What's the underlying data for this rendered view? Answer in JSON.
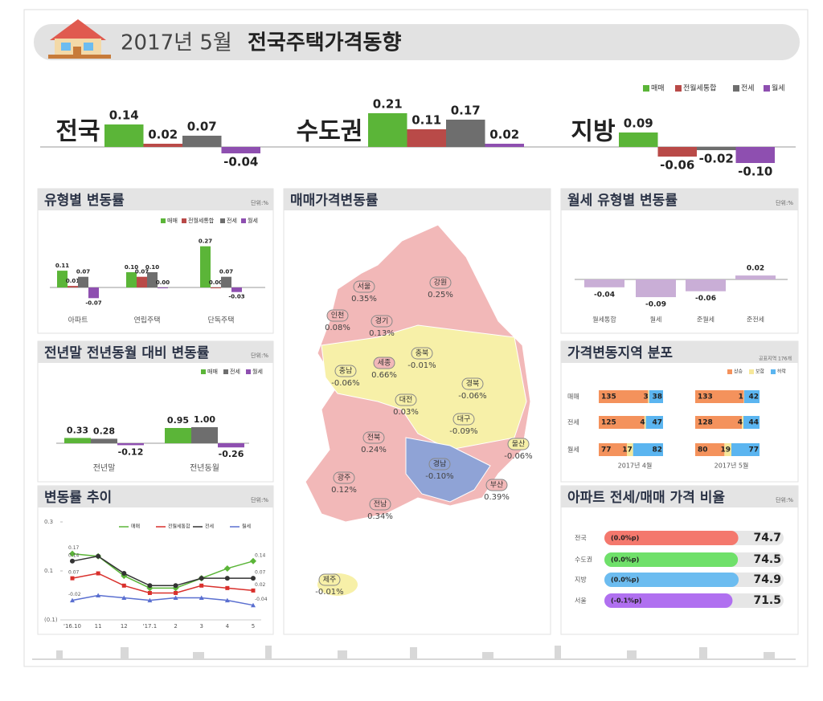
{
  "header": {
    "title_date": "2017년 5월",
    "title": "전국주택가격동향"
  },
  "chart_data": [
    {
      "type": "grouped-bar",
      "categories": [
        "전국",
        "수도권",
        "지방"
      ],
      "ylim": [
        -0.15,
        0.25
      ],
      "series": [
        {
          "name": "매매",
          "color": "#5bb538",
          "values": [
            0.14,
            0.21,
            0.09
          ],
          "value_labels": [
            "0.14",
            "0.21",
            "0.09"
          ]
        },
        {
          "name": "전월세통합",
          "color": "#b94a48",
          "values": [
            0.02,
            0.11,
            -0.06
          ],
          "value_labels": [
            "0.02",
            "0.11",
            "-0.06"
          ]
        },
        {
          "name": "전세",
          "color": "#6e6e6e",
          "values": [
            0.07,
            0.17,
            -0.02
          ],
          "value_labels": [
            "0.07",
            "0.17",
            "-0.02"
          ]
        },
        {
          "name": "월세",
          "color": "#8e4fb0",
          "values": [
            -0.04,
            0.02,
            -0.1
          ],
          "value_labels": [
            "-0.04",
            "0.02",
            "-0.10"
          ]
        }
      ]
    },
    {
      "type": "grouped-bar",
      "title": "유형별 변동률",
      "unit": "단위:%",
      "categories": [
        "아파트",
        "연립주택",
        "단독주택"
      ],
      "ylim": [
        -0.1,
        0.3
      ],
      "series": [
        {
          "name": "매매",
          "color": "#5bb538",
          "values": [
            0.11,
            0.1,
            0.27
          ],
          "value_labels": [
            "0.11",
            "0.10",
            "0.27"
          ]
        },
        {
          "name": "전월세통합",
          "color": "#b94a48",
          "values": [
            0.01,
            0.07,
            0.0
          ],
          "value_labels": [
            "0.01",
            "0.07",
            "0.00"
          ]
        },
        {
          "name": "전세",
          "color": "#6e6e6e",
          "values": [
            0.07,
            0.1,
            0.07
          ],
          "value_labels": [
            "0.07",
            "0.10",
            "0.07"
          ]
        },
        {
          "name": "월세",
          "color": "#8e4fb0",
          "values": [
            -0.07,
            0.0,
            -0.03
          ],
          "value_labels": [
            "-0.07",
            "0.00",
            "-0.03"
          ]
        }
      ]
    },
    {
      "type": "grouped-bar",
      "title": "전년말 전년동월 대비 변동률",
      "unit": "단위:%",
      "categories": [
        "전년말",
        "전년동월"
      ],
      "ylim": [
        -0.5,
        1.5
      ],
      "series": [
        {
          "name": "매매",
          "color": "#5bb538",
          "values": [
            0.33,
            0.95
          ],
          "value_labels": [
            "0.33",
            "0.95"
          ]
        },
        {
          "name": "전세",
          "color": "#6e6e6e",
          "values": [
            0.28,
            1.0
          ],
          "value_labels": [
            "0.28",
            "1.00"
          ]
        },
        {
          "name": "월세",
          "color": "#8e4fb0",
          "values": [
            -0.12,
            -0.26
          ],
          "value_labels": [
            "-0.12",
            "-0.26"
          ]
        }
      ]
    },
    {
      "type": "line",
      "title": "변동률 추이",
      "unit": "단위:%",
      "x": [
        "'16.10",
        "11",
        "12",
        "'17.1",
        "2",
        "3",
        "4",
        "5"
      ],
      "ylim": [
        -0.1,
        0.3
      ],
      "yticks": [
        0.3,
        0.1,
        {
          "value": -0.1,
          "label": "(0.1)"
        }
      ],
      "series": [
        {
          "name": "매매",
          "color": "#5bb538",
          "values": [
            0.17,
            0.16,
            0.08,
            0.03,
            0.03,
            0.07,
            0.11,
            0.14
          ]
        },
        {
          "name": "전월세통합",
          "color": "#d9302c",
          "values": [
            0.07,
            0.09,
            0.04,
            0.01,
            0.01,
            0.04,
            0.03,
            0.02
          ]
        },
        {
          "name": "전세",
          "color": "#333333",
          "values": [
            0.14,
            0.16,
            0.09,
            0.04,
            0.04,
            0.07,
            0.07,
            0.07
          ]
        },
        {
          "name": "월세",
          "color": "#5a6fd0",
          "values": [
            -0.02,
            0.0,
            -0.01,
            -0.02,
            -0.01,
            -0.01,
            -0.02,
            -0.04
          ]
        }
      ]
    },
    {
      "type": "map",
      "title": "매매가격변동률",
      "categories": [
        "서울",
        "강원",
        "인천",
        "경기",
        "충북",
        "충남",
        "세종",
        "경북",
        "대전",
        "대구",
        "전북",
        "울산",
        "경남",
        "광주",
        "부산",
        "전남",
        "제주"
      ],
      "values": [
        0.35,
        0.25,
        0.08,
        0.13,
        -0.01,
        -0.06,
        0.66,
        -0.06,
        0.03,
        -0.09,
        0.24,
        -0.06,
        -0.1,
        0.12,
        0.39,
        0.34,
        -0.01
      ],
      "value_labels": [
        "0.35%",
        "0.25%",
        "0.08%",
        "0.13%",
        "-0.01%",
        "-0.06%",
        "0.66%",
        "-0.06%",
        "0.03%",
        "-0.09%",
        "0.24%",
        "-0.06%",
        "-0.10%",
        "0.12%",
        "0.39%",
        "0.34%",
        "-0.01%"
      ],
      "colors": [
        "#f2b8b8",
        "#f2b8b8",
        "#f2b8b8",
        "#f2b8b8",
        "#f7f0a8",
        "#f7f0a8",
        "#f2b8b8",
        "#f7f0a8",
        "#f7f0a8",
        "#f7f0a8",
        "#f2b8b8",
        "#f7f0a8",
        "#8fa3d6",
        "#f2b8b8",
        "#f2b8b8",
        "#f2b8b8",
        "#f7f0a8"
      ]
    },
    {
      "type": "bar",
      "title": "월세 유형별 변동률",
      "unit": "단위:%",
      "categories": [
        "월세통합",
        "월세",
        "준월세",
        "준전세"
      ],
      "values": [
        -0.04,
        -0.09,
        -0.06,
        0.02
      ],
      "value_labels": [
        "-0.04",
        "-0.09",
        "-0.06",
        "0.02"
      ],
      "color": "#c9aed6",
      "ylim": [
        -0.1,
        0.1
      ]
    },
    {
      "type": "stacked-hbar",
      "title": "가격변동지역 분포",
      "note": "공표지역 176개",
      "categories": [
        "매매",
        "전세",
        "월세"
      ],
      "periods": [
        "2017년 4월",
        "2017년 5월"
      ],
      "xlim": [
        0,
        176
      ],
      "series": [
        {
          "name": "상승",
          "color": "#f4925c",
          "values": [
            [
              135,
              125,
              77
            ],
            [
              133,
              128,
              80
            ]
          ]
        },
        {
          "name": "보합",
          "color": "#f6e79a",
          "values": [
            [
              3,
              4,
              17
            ],
            [
              1,
              4,
              19
            ]
          ]
        },
        {
          "name": "하락",
          "color": "#5bb5f0",
          "values": [
            [
              38,
              47,
              82
            ],
            [
              42,
              44,
              77
            ]
          ]
        }
      ]
    },
    {
      "type": "hbar",
      "title": "아파트 전세/매매 가격 비율",
      "unit": "단위:%",
      "categories": [
        "전국",
        "수도권",
        "지방",
        "서울"
      ],
      "values": [
        74.7,
        74.5,
        74.9,
        71.5
      ],
      "value_labels": [
        "74.7",
        "74.5",
        "74.9",
        "71.5"
      ],
      "notes": [
        "(0.0%p)",
        "(0.0%p)",
        "(0.0%p)",
        "(-0.1%p)"
      ],
      "colors": [
        "#f4786d",
        "#6fe06a",
        "#6cbcf0",
        "#b070f0"
      ],
      "xlim": [
        0,
        100
      ]
    }
  ]
}
